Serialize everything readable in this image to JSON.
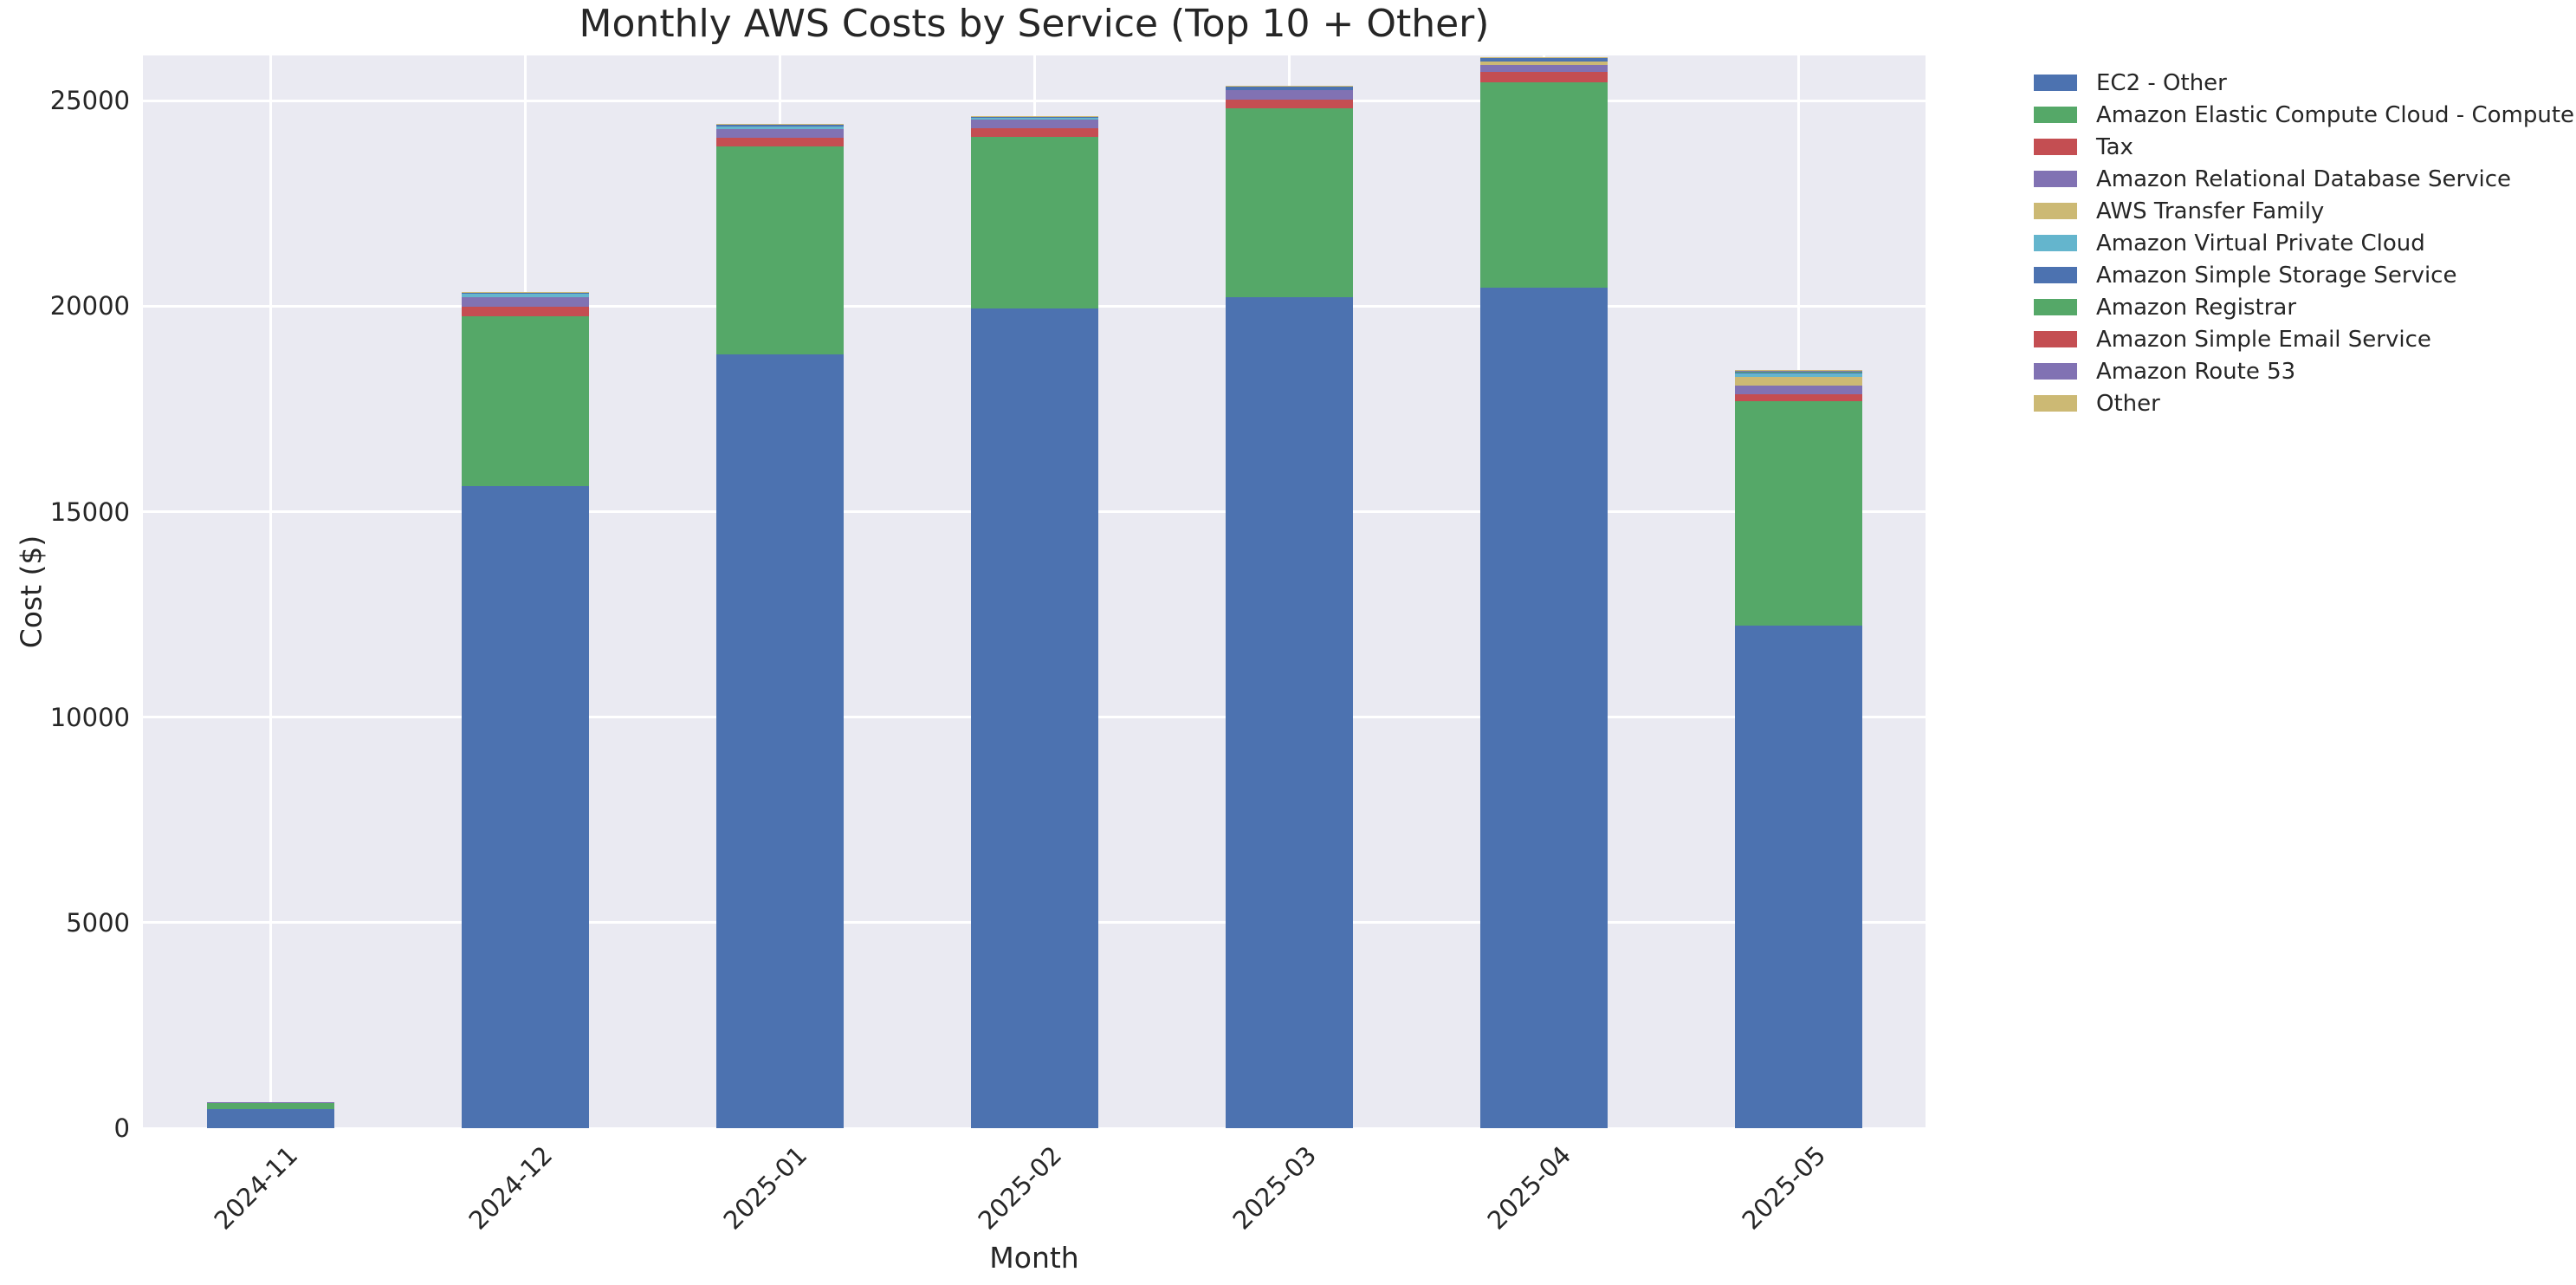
{
  "title": "Monthly AWS Costs by Service (Top 10 + Other)",
  "chart_data": {
    "type": "bar",
    "stacked": true,
    "title": "Monthly AWS Costs by Service (Top 10 + Other)",
    "xlabel": "Month",
    "ylabel": "Cost ($)",
    "categories": [
      "2024-11",
      "2024-12",
      "2025-01",
      "2025-02",
      "2025-03",
      "2025-04",
      "2025-05"
    ],
    "series": [
      {
        "name": "EC2 - Other",
        "color": "#4C72B0",
        "values": [
          455,
          15620,
          18820,
          19950,
          20210,
          20440,
          12220
        ]
      },
      {
        "name": "Amazon Elastic Compute Cloud - Compute",
        "color": "#55A868",
        "values": [
          155,
          4140,
          5060,
          4170,
          4600,
          5000,
          5470
        ]
      },
      {
        "name": "Tax",
        "color": "#C44E52",
        "values": [
          0,
          225,
          210,
          200,
          210,
          250,
          170
        ]
      },
      {
        "name": "Amazon Relational Database Service",
        "color": "#8172B3",
        "values": [
          25,
          230,
          225,
          210,
          245,
          185,
          210
        ]
      },
      {
        "name": "AWS Transfer Family",
        "color": "#CCB974",
        "values": [
          0,
          0,
          0,
          0,
          0,
          85,
          210
        ]
      },
      {
        "name": "Amazon Virtual Private Cloud",
        "color": "#64B5CD",
        "values": [
          0,
          85,
          60,
          45,
          0,
          0,
          85
        ]
      },
      {
        "name": "Amazon Simple Storage Service",
        "color": "#4C72B0",
        "values": [
          0,
          40,
          40,
          40,
          85,
          85,
          10
        ]
      },
      {
        "name": "Amazon Registrar",
        "color": "#55A868",
        "values": [
          0,
          0,
          0,
          0,
          0,
          0,
          40
        ]
      },
      {
        "name": "Amazon Simple Email Service",
        "color": "#C44E52",
        "values": [
          0,
          0,
          0,
          0,
          0,
          0,
          0
        ]
      },
      {
        "name": "Amazon Route 53",
        "color": "#8172B3",
        "values": [
          5,
          10,
          10,
          10,
          10,
          10,
          10
        ]
      },
      {
        "name": "Other",
        "color": "#CCB974",
        "values": [
          0,
          5,
          5,
          5,
          5,
          5,
          15
        ]
      }
    ],
    "totals": [
      640,
      20355,
      24430,
      24630,
      25365,
      26060,
      18440
    ],
    "ylim": [
      0,
      26100
    ],
    "yticks": [
      0,
      5000,
      10000,
      15000,
      20000,
      25000
    ],
    "ytick_labels": [
      "0",
      "5000",
      "10000",
      "15000",
      "20000",
      "25000"
    ],
    "grid": true,
    "legend_position": "upper-right-outside",
    "colors": {
      "plot_background": "#EAEAF2",
      "grid": "#FFFFFF",
      "figure_background": "#FFFFFF",
      "text": "#262626"
    }
  }
}
